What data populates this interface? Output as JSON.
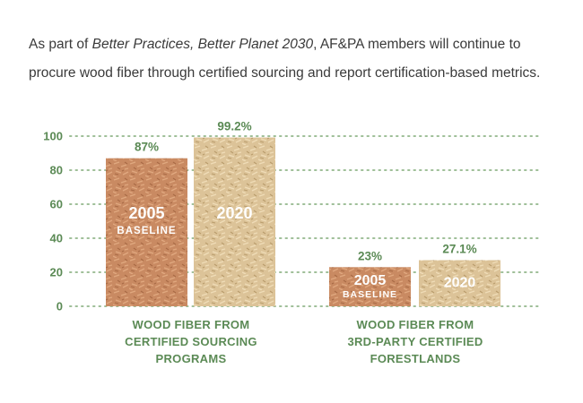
{
  "intro": {
    "part1": "As part of ",
    "italic": "Better Practices, Better Planet 2030",
    "part2": ", AF&PA members will continue to procure wood fiber through certified sourcing and report certification-based metrics."
  },
  "colors": {
    "accent_green": "#5b8a55",
    "bar_2005": "#c98a62",
    "bar_2020": "#dcc398",
    "grid": "#9fbf98"
  },
  "chart_data": {
    "type": "bar",
    "title": "",
    "xlabel": "",
    "ylabel": "",
    "ylim": [
      0,
      100
    ],
    "yticks": [
      0,
      20,
      40,
      60,
      80,
      100
    ],
    "grid": true,
    "categories": [
      [
        "WOOD FIBER FROM",
        "CERTIFIED SOURCING",
        "PROGRAMS"
      ],
      [
        "WOOD FIBER FROM",
        "3RD-PARTY CERTIFIED",
        "FORESTLANDS"
      ]
    ],
    "series": [
      {
        "year": "2005",
        "sublabel": "BASELINE",
        "values": [
          87,
          23
        ],
        "value_labels": [
          "87%",
          "23%"
        ]
      },
      {
        "year": "2020",
        "sublabel": "",
        "values": [
          99.2,
          27.1
        ],
        "value_labels": [
          "99.2%",
          "27.1%"
        ]
      }
    ]
  }
}
